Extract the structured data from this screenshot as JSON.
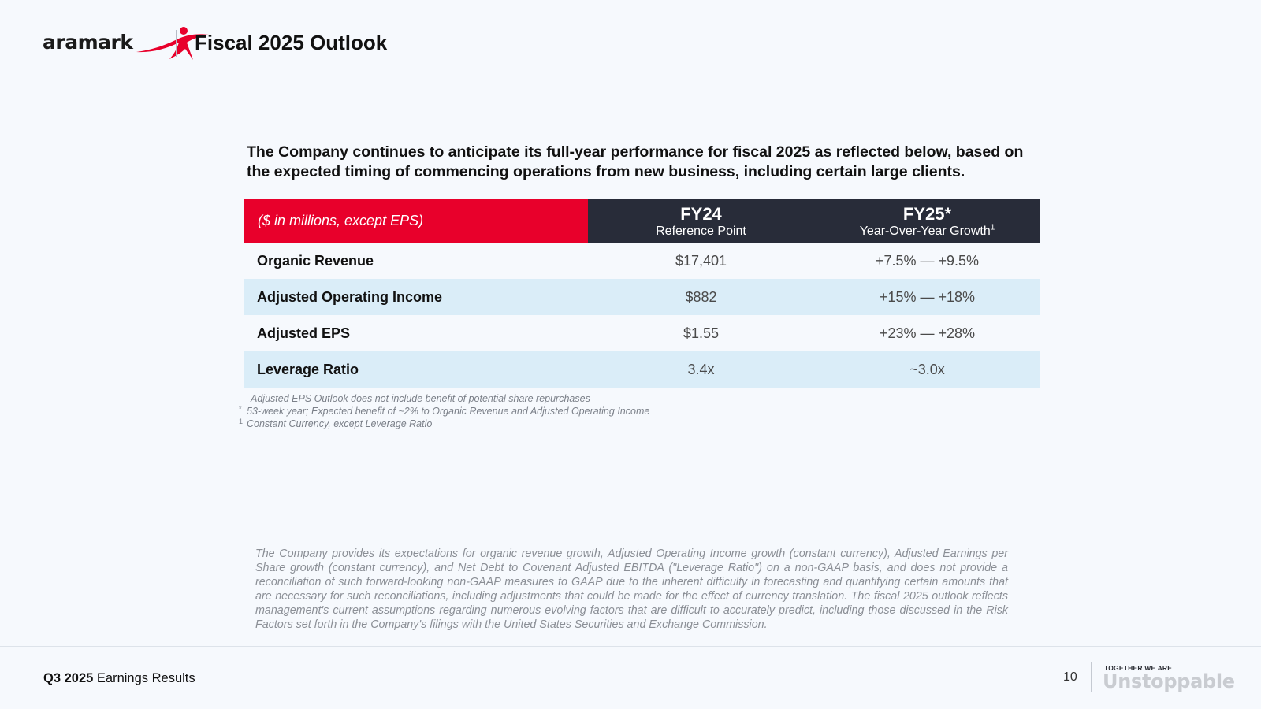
{
  "header": {
    "logo_text": "aramark",
    "title": "Fiscal 2025 Outlook"
  },
  "intro": "The Company continues to anticipate its full-year performance for fiscal 2025 as reflected below, based on the expected timing of commencing operations from new business, including certain large clients.",
  "table": {
    "label": "($ in millions, except EPS)",
    "columns": [
      {
        "title": "FY24",
        "subtitle": "Reference Point",
        "sup": ""
      },
      {
        "title": "FY25*",
        "subtitle": "Year-Over-Year Growth",
        "sup": "1"
      }
    ],
    "rows": [
      {
        "metric": "Organic Revenue",
        "fy24": "$17,401",
        "fy25": "+7.5% — +9.5%"
      },
      {
        "metric": "Adjusted Operating Income",
        "fy24": "$882",
        "fy25": "+15% — +18%"
      },
      {
        "metric": "Adjusted EPS",
        "fy24": "$1.55",
        "fy25": "+23% — +28%"
      },
      {
        "metric": "Leverage Ratio",
        "fy24": "3.4x",
        "fy25": "~3.0x"
      }
    ]
  },
  "footnotes": [
    {
      "mark": "",
      "text": "Adjusted EPS Outlook does not include benefit of potential share repurchases"
    },
    {
      "mark": "*",
      "text": "53-week year; Expected benefit of ~2% to Organic Revenue and Adjusted Operating Income"
    },
    {
      "mark": "1",
      "text": "Constant Currency, except Leverage Ratio"
    }
  ],
  "disclaimer": "The Company provides its expectations for organic revenue growth, Adjusted Operating Income growth (constant currency), Adjusted Earnings per Share growth (constant currency), and Net Debt to Covenant Adjusted EBITDA (\"Leverage Ratio\") on a non-GAAP basis, and does not provide a reconciliation of such forward-looking non-GAAP measures to GAAP due to the inherent difficulty in forecasting and quantifying certain amounts that are necessary for such reconciliations, including adjustments that could be made for the effect of currency translation. The fiscal 2025 outlook reflects management's current assumptions regarding numerous evolving factors that are difficult to accurately predict, including those discussed in the Risk Factors set forth in the Company's filings with the United States Securities and Exchange Commission.",
  "footer": {
    "report_bold": "Q3 2025",
    "report_rest": " Earnings Results",
    "page_number": "10",
    "tagline_small": "TOGETHER WE ARE",
    "tagline_big": "Unstoppable"
  },
  "colors": {
    "brand_red": "#e8002b",
    "header_dark": "#282c39",
    "row_shade": "#daedf8"
  }
}
